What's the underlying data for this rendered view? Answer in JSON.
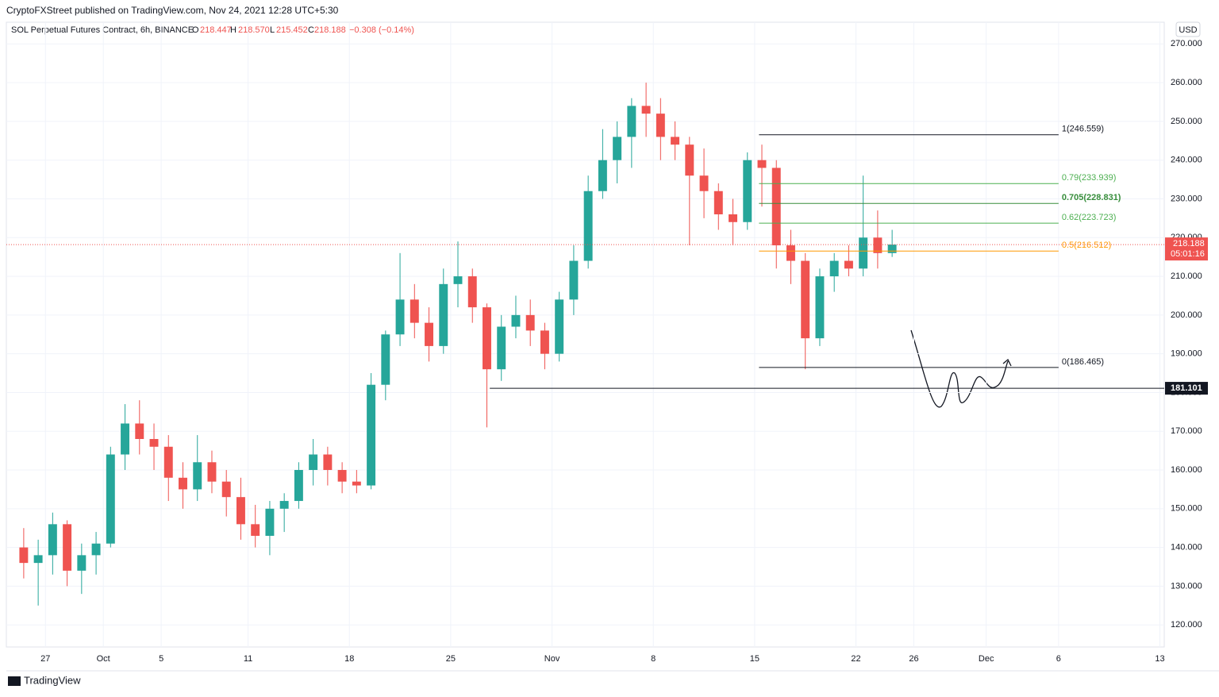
{
  "header": {
    "publisher": "CryptoFXStreet published on TradingView.com, Nov 24, 2021 12:28 UTC+5:30",
    "logo": "TradingView"
  },
  "chart_data": {
    "type": "candlestick",
    "title": "SOL Perpetual Futures Contract, 6h, BINANCE",
    "ohlc_legend": {
      "open_key": "O",
      "open": "218.447",
      "high_key": "H",
      "high": "218.570",
      "low_key": "L",
      "low": "215.452",
      "close_key": "C",
      "close": "218.188",
      "change": "−0.308 (−0.14%)"
    },
    "currency": "USD",
    "up_color": "#26a69a",
    "down_color": "#ef5350",
    "xlim": [
      -2.7,
      77.3
    ],
    "xticks": [
      {
        "value": 0,
        "label": "27"
      },
      {
        "value": 4,
        "label": "Oct"
      },
      {
        "value": 8,
        "label": "5"
      },
      {
        "value": 14,
        "label": "11"
      },
      {
        "value": 21,
        "label": "18"
      },
      {
        "value": 28,
        "label": "25"
      },
      {
        "value": 35,
        "label": "Nov"
      },
      {
        "value": 42,
        "label": "8"
      },
      {
        "value": 49,
        "label": "15"
      },
      {
        "value": 56,
        "label": "22"
      },
      {
        "value": 60,
        "label": "26"
      },
      {
        "value": 65,
        "label": "Dec"
      },
      {
        "value": 70,
        "label": "6"
      },
      {
        "value": 77,
        "label": "13"
      }
    ],
    "ylim": [
      114.3,
      275.6
    ],
    "yticks": [
      {
        "value": 120,
        "label": "120.000"
      },
      {
        "value": 130,
        "label": "130.000"
      },
      {
        "value": 140,
        "label": "140.000"
      },
      {
        "value": 150,
        "label": "150.000"
      },
      {
        "value": 160,
        "label": "160.000"
      },
      {
        "value": 170,
        "label": "170.000"
      },
      {
        "value": 180,
        "label": "180.000"
      },
      {
        "value": 190,
        "label": "190.000"
      },
      {
        "value": 200,
        "label": "200.000"
      },
      {
        "value": 210,
        "label": "210.000"
      },
      {
        "value": 220,
        "label": "220.000"
      },
      {
        "value": 230,
        "label": "230.000"
      },
      {
        "value": 240,
        "label": "240.000"
      },
      {
        "value": 250,
        "label": "250.000"
      },
      {
        "value": 260,
        "label": "260.000"
      },
      {
        "value": 270,
        "label": "270.000"
      }
    ],
    "grid": true,
    "candles": [
      {
        "x": -1.5,
        "open": 140,
        "high": 145,
        "low": 132,
        "close": 136
      },
      {
        "x": -0.5,
        "open": 136,
        "high": 142,
        "low": 125,
        "close": 138
      },
      {
        "x": 0.5,
        "open": 138,
        "high": 149,
        "low": 133,
        "close": 146
      },
      {
        "x": 1.5,
        "open": 146,
        "high": 147,
        "low": 130,
        "close": 134
      },
      {
        "x": 2.5,
        "open": 134,
        "high": 141,
        "low": 128,
        "close": 138
      },
      {
        "x": 3.5,
        "open": 138,
        "high": 144,
        "low": 133,
        "close": 141
      },
      {
        "x": 4.5,
        "open": 141,
        "high": 166,
        "low": 140,
        "close": 164
      },
      {
        "x": 5.5,
        "open": 164,
        "high": 177,
        "low": 160,
        "close": 172
      },
      {
        "x": 6.5,
        "open": 172,
        "high": 178,
        "low": 164,
        "close": 168
      },
      {
        "x": 7.5,
        "open": 168,
        "high": 172,
        "low": 160,
        "close": 166
      },
      {
        "x": 8.5,
        "open": 166,
        "high": 169,
        "low": 152,
        "close": 158
      },
      {
        "x": 9.5,
        "open": 158,
        "high": 162,
        "low": 150,
        "close": 155
      },
      {
        "x": 10.5,
        "open": 155,
        "high": 169,
        "low": 152,
        "close": 162
      },
      {
        "x": 11.5,
        "open": 162,
        "high": 165,
        "low": 154,
        "close": 157
      },
      {
        "x": 12.5,
        "open": 157,
        "high": 160,
        "low": 148,
        "close": 153
      },
      {
        "x": 13.5,
        "open": 153,
        "high": 158,
        "low": 142,
        "close": 146
      },
      {
        "x": 14.5,
        "open": 146,
        "high": 151,
        "low": 140,
        "close": 143
      },
      {
        "x": 15.5,
        "open": 143,
        "high": 152,
        "low": 138,
        "close": 150
      },
      {
        "x": 16.5,
        "open": 150,
        "high": 154,
        "low": 144,
        "close": 152
      },
      {
        "x": 17.5,
        "open": 152,
        "high": 162,
        "low": 150,
        "close": 160
      },
      {
        "x": 18.5,
        "open": 160,
        "high": 168,
        "low": 156,
        "close": 164
      },
      {
        "x": 19.5,
        "open": 164,
        "high": 166,
        "low": 156,
        "close": 160
      },
      {
        "x": 20.5,
        "open": 160,
        "high": 162,
        "low": 154,
        "close": 157
      },
      {
        "x": 21.5,
        "open": 157,
        "high": 160,
        "low": 154,
        "close": 156
      },
      {
        "x": 22.5,
        "open": 156,
        "high": 185,
        "low": 155,
        "close": 182
      },
      {
        "x": 23.5,
        "open": 182,
        "high": 196,
        "low": 178,
        "close": 195
      },
      {
        "x": 24.5,
        "open": 195,
        "high": 216,
        "low": 192,
        "close": 204
      },
      {
        "x": 25.5,
        "open": 204,
        "high": 208,
        "low": 194,
        "close": 198
      },
      {
        "x": 26.5,
        "open": 198,
        "high": 202,
        "low": 188,
        "close": 192
      },
      {
        "x": 27.5,
        "open": 192,
        "high": 212,
        "low": 190,
        "close": 208
      },
      {
        "x": 28.5,
        "open": 208,
        "high": 219,
        "low": 202,
        "close": 210
      },
      {
        "x": 29.5,
        "open": 210,
        "high": 212,
        "low": 198,
        "close": 202
      },
      {
        "x": 30.5,
        "open": 202,
        "high": 203,
        "low": 171,
        "close": 186
      },
      {
        "x": 31.5,
        "open": 186,
        "high": 200,
        "low": 183,
        "close": 197
      },
      {
        "x": 32.5,
        "open": 197,
        "high": 205,
        "low": 194,
        "close": 200
      },
      {
        "x": 33.5,
        "open": 200,
        "high": 204,
        "low": 192,
        "close": 196
      },
      {
        "x": 34.5,
        "open": 196,
        "high": 198,
        "low": 186,
        "close": 190
      },
      {
        "x": 35.5,
        "open": 190,
        "high": 206,
        "low": 188,
        "close": 204
      },
      {
        "x": 36.5,
        "open": 204,
        "high": 218,
        "low": 200,
        "close": 214
      },
      {
        "x": 37.5,
        "open": 214,
        "high": 236,
        "low": 212,
        "close": 232
      },
      {
        "x": 38.5,
        "open": 232,
        "high": 248,
        "low": 230,
        "close": 240
      },
      {
        "x": 39.5,
        "open": 240,
        "high": 250,
        "low": 234,
        "close": 246
      },
      {
        "x": 40.5,
        "open": 246,
        "high": 256,
        "low": 238,
        "close": 254
      },
      {
        "x": 41.5,
        "open": 254,
        "high": 260,
        "low": 246,
        "close": 252
      },
      {
        "x": 42.5,
        "open": 252,
        "high": 256,
        "low": 240,
        "close": 246
      },
      {
        "x": 43.5,
        "open": 246,
        "high": 250,
        "low": 240,
        "close": 244
      },
      {
        "x": 44.5,
        "open": 244,
        "high": 246,
        "low": 218,
        "close": 236
      },
      {
        "x": 45.5,
        "open": 236,
        "high": 243,
        "low": 225,
        "close": 232
      },
      {
        "x": 46.5,
        "open": 232,
        "high": 234,
        "low": 222,
        "close": 226
      },
      {
        "x": 47.5,
        "open": 226,
        "high": 230,
        "low": 218,
        "close": 224
      },
      {
        "x": 48.5,
        "open": 224,
        "high": 242,
        "low": 222,
        "close": 240
      },
      {
        "x": 49.5,
        "open": 240,
        "high": 244,
        "low": 228,
        "close": 238
      },
      {
        "x": 50.5,
        "open": 238,
        "high": 240,
        "low": 212,
        "close": 218
      },
      {
        "x": 51.5,
        "open": 218,
        "high": 222,
        "low": 208,
        "close": 214
      },
      {
        "x": 52.5,
        "open": 214,
        "high": 216,
        "low": 186,
        "close": 194
      },
      {
        "x": 53.5,
        "open": 194,
        "high": 212,
        "low": 192,
        "close": 210
      },
      {
        "x": 54.5,
        "open": 210,
        "high": 216,
        "low": 206,
        "close": 214
      },
      {
        "x": 55.5,
        "open": 214,
        "high": 218,
        "low": 210,
        "close": 212
      },
      {
        "x": 56.5,
        "open": 212,
        "high": 236,
        "low": 210,
        "close": 220
      },
      {
        "x": 57.5,
        "open": 220,
        "high": 227,
        "low": 212,
        "close": 216
      },
      {
        "x": 58.5,
        "open": 216,
        "high": 222,
        "low": 215,
        "close": 218.188
      }
    ],
    "fib": {
      "x_start": 49.3,
      "x_end": 70,
      "levels": [
        {
          "value": 246.559,
          "label": "1(246.559)",
          "color": "#131722"
        },
        {
          "value": 233.939,
          "label": "0.79(233.939)",
          "color": "#4caf50"
        },
        {
          "value": 228.831,
          "label": "0.705(228.831)",
          "color": "#388e3c"
        },
        {
          "value": 223.723,
          "label": "0.62(223.723)",
          "color": "#4caf50"
        },
        {
          "value": 216.512,
          "label": "0.5(216.512)",
          "color": "#ff9800"
        },
        {
          "value": 186.465,
          "label": "0(186.465)",
          "color": "#131722"
        }
      ]
    },
    "support": {
      "value": 181.101,
      "label": "181.101",
      "x_start": 30.7
    },
    "last_price": {
      "value": 218.188,
      "label": "218.188",
      "countdown": "05:01:16",
      "color": "#ef5350"
    }
  }
}
